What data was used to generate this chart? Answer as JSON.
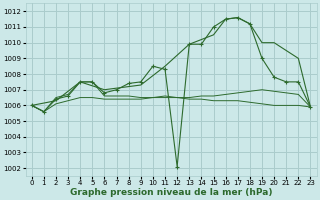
{
  "background_color": "#cce8e8",
  "grid_color": "#aacccc",
  "line_color": "#2d6a2d",
  "xlabel": "Graphe pression niveau de la mer (hPa)",
  "xlabel_fontsize": 6.5,
  "xlim": [
    -0.5,
    23.5
  ],
  "ylim": [
    1001.5,
    1012.5
  ],
  "yticks": [
    1002,
    1003,
    1004,
    1005,
    1006,
    1007,
    1008,
    1009,
    1010,
    1011,
    1012
  ],
  "xticks": [
    0,
    1,
    2,
    3,
    4,
    5,
    6,
    7,
    8,
    9,
    10,
    11,
    12,
    13,
    14,
    15,
    16,
    17,
    18,
    19,
    20,
    21,
    22,
    23
  ],
  "line1_x": [
    0,
    1,
    2,
    3,
    4,
    5,
    6,
    7,
    8,
    9,
    10,
    11,
    12,
    13,
    14,
    15,
    16,
    17,
    18,
    19,
    20,
    21,
    22,
    23
  ],
  "line1_y": [
    1006.0,
    1005.6,
    1006.1,
    1006.3,
    1006.5,
    1006.5,
    1006.4,
    1006.4,
    1006.4,
    1006.4,
    1006.5,
    1006.5,
    1006.5,
    1006.5,
    1006.6,
    1006.6,
    1006.7,
    1006.8,
    1006.9,
    1007.0,
    1006.9,
    1006.8,
    1006.7,
    1005.9
  ],
  "line2_x": [
    0,
    1,
    2,
    3,
    4,
    5,
    6,
    7,
    8,
    9,
    10,
    11,
    12,
    13,
    14,
    15,
    16,
    17,
    18,
    19,
    20,
    21,
    22,
    23
  ],
  "line2_y": [
    1006.0,
    1005.6,
    1006.5,
    1006.7,
    1007.5,
    1007.5,
    1006.6,
    1006.6,
    1006.6,
    1006.5,
    1006.5,
    1006.6,
    1006.5,
    1006.4,
    1006.4,
    1006.3,
    1006.3,
    1006.3,
    1006.2,
    1006.1,
    1006.0,
    1006.0,
    1006.0,
    1005.9
  ],
  "line3_x": [
    0,
    1,
    2,
    3,
    4,
    5,
    6,
    7,
    8,
    9,
    10,
    11,
    12,
    13,
    14,
    15,
    16,
    17,
    18,
    19,
    20,
    21,
    22,
    23
  ],
  "line3_y": [
    1006.0,
    1005.6,
    1006.4,
    1006.6,
    1007.5,
    1007.5,
    1006.8,
    1007.0,
    1007.4,
    1007.5,
    1008.5,
    1008.3,
    1002.1,
    1009.9,
    1009.9,
    1011.0,
    1011.5,
    1011.6,
    1011.2,
    1009.0,
    1007.8,
    1007.5,
    1007.5,
    1005.9
  ],
  "line4_x": [
    0,
    2,
    4,
    6,
    9,
    11,
    13,
    15,
    16,
    17,
    18,
    19,
    20,
    22,
    23
  ],
  "line4_y": [
    1006.0,
    1006.3,
    1007.5,
    1007.0,
    1007.3,
    1008.5,
    1009.9,
    1010.5,
    1011.5,
    1011.6,
    1011.2,
    1010.0,
    1010.0,
    1009.0,
    1005.9
  ],
  "tick_fontsize": 5
}
